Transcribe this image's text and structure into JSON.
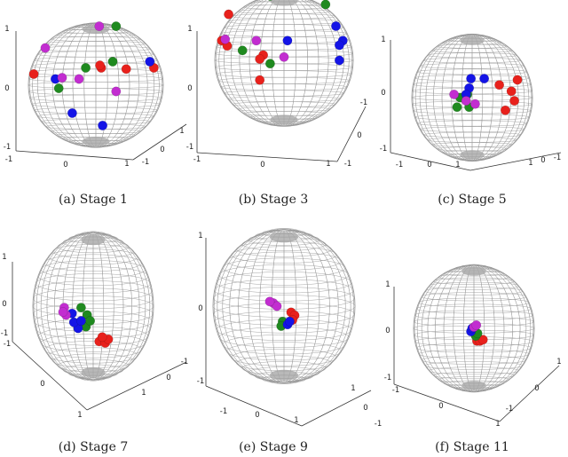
{
  "captions": [
    "(a) Stage 1",
    "(b) Stage 3",
    "(c) Stage 5",
    "(d) Stage 7",
    "(e) Stage 9",
    "(f) Stage 11"
  ],
  "ticks": {
    "pos": "1",
    "zero": "0",
    "neg": "-1",
    "neg_alt": "−1"
  },
  "colors": {
    "sphere": "#9a9a9a",
    "axis": "#333333",
    "red": "#e8211c",
    "green": "#1f8a1f",
    "blue": "#1414e6",
    "magenta": "#c22dd0"
  },
  "panels": [
    {
      "stage": 1,
      "points": [
        {
          "c": "red",
          "u": -0.92,
          "v": 0.18
        },
        {
          "c": "red",
          "u": 0.08,
          "v": 0.28
        },
        {
          "c": "red",
          "u": 0.06,
          "v": 0.32
        },
        {
          "c": "red",
          "u": 0.86,
          "v": 0.28
        },
        {
          "c": "red",
          "u": 0.45,
          "v": 0.26
        },
        {
          "c": "green",
          "u": 0.3,
          "v": 0.95
        },
        {
          "c": "green",
          "u": 0.25,
          "v": 0.38
        },
        {
          "c": "green",
          "u": -0.55,
          "v": -0.05
        },
        {
          "c": "green",
          "u": -0.15,
          "v": 0.28
        },
        {
          "c": "blue",
          "u": -0.6,
          "v": 0.1
        },
        {
          "c": "blue",
          "u": -0.35,
          "v": -0.45
        },
        {
          "c": "blue",
          "u": 0.1,
          "v": -0.65
        },
        {
          "c": "blue",
          "u": 0.8,
          "v": 0.38
        },
        {
          "c": "magenta",
          "u": -0.75,
          "v": 0.6
        },
        {
          "c": "magenta",
          "u": -0.5,
          "v": 0.12
        },
        {
          "c": "magenta",
          "u": -0.25,
          "v": 0.1
        },
        {
          "c": "magenta",
          "u": 0.3,
          "v": -0.1
        },
        {
          "c": "magenta",
          "u": 0.05,
          "v": 0.95
        }
      ]
    },
    {
      "stage": 3,
      "points": [
        {
          "c": "red",
          "u": -0.8,
          "v": 0.7
        },
        {
          "c": "red",
          "u": -0.9,
          "v": 0.3
        },
        {
          "c": "red",
          "u": -0.82,
          "v": 0.22
        },
        {
          "c": "red",
          "u": -0.3,
          "v": 0.08
        },
        {
          "c": "red",
          "u": -0.35,
          "v": 0.02
        },
        {
          "c": "red",
          "u": -0.35,
          "v": -0.3
        },
        {
          "c": "green",
          "u": -0.2,
          "v": 0.98
        },
        {
          "c": "green",
          "u": 0.6,
          "v": 0.85
        },
        {
          "c": "green",
          "u": -0.6,
          "v": 0.15
        },
        {
          "c": "green",
          "u": -0.2,
          "v": -0.05
        },
        {
          "c": "blue",
          "u": 0.75,
          "v": 0.52
        },
        {
          "c": "blue",
          "u": 0.85,
          "v": 0.3
        },
        {
          "c": "blue",
          "u": 0.8,
          "v": 0.23
        },
        {
          "c": "blue",
          "u": 0.05,
          "v": 0.3
        },
        {
          "c": "blue",
          "u": 0.8,
          "v": 0.0
        },
        {
          "c": "magenta",
          "u": -0.4,
          "v": 0.3
        },
        {
          "c": "magenta",
          "u": -0.85,
          "v": 0.32
        },
        {
          "c": "magenta",
          "u": 0.0,
          "v": 0.05
        }
      ]
    },
    {
      "stage": 5,
      "points": [
        {
          "c": "red",
          "u": 0.45,
          "v": 0.2
        },
        {
          "c": "red",
          "u": 0.65,
          "v": 0.1
        },
        {
          "c": "red",
          "u": 0.7,
          "v": -0.05
        },
        {
          "c": "red",
          "u": 0.55,
          "v": -0.2
        },
        {
          "c": "red",
          "u": 0.75,
          "v": 0.28
        },
        {
          "c": "green",
          "u": -0.2,
          "v": 0.0
        },
        {
          "c": "green",
          "u": -0.08,
          "v": 0.05
        },
        {
          "c": "green",
          "u": -0.25,
          "v": -0.15
        },
        {
          "c": "green",
          "u": -0.05,
          "v": -0.15
        },
        {
          "c": "blue",
          "u": -0.02,
          "v": 0.3
        },
        {
          "c": "blue",
          "u": 0.2,
          "v": 0.3
        },
        {
          "c": "blue",
          "u": -0.05,
          "v": 0.15
        },
        {
          "c": "blue",
          "u": -0.1,
          "v": 0.05
        },
        {
          "c": "magenta",
          "u": -0.3,
          "v": 0.05
        },
        {
          "c": "magenta",
          "u": 0.05,
          "v": -0.1
        },
        {
          "c": "magenta",
          "u": -0.1,
          "v": -0.05
        }
      ]
    },
    {
      "stage": 7,
      "points": [
        {
          "c": "red",
          "u": 0.1,
          "v": -0.48
        },
        {
          "c": "red",
          "u": 0.2,
          "v": -0.5
        },
        {
          "c": "red",
          "u": 0.25,
          "v": -0.45
        },
        {
          "c": "red",
          "u": 0.15,
          "v": -0.42
        },
        {
          "c": "green",
          "u": -0.2,
          "v": -0.02
        },
        {
          "c": "green",
          "u": -0.1,
          "v": -0.12
        },
        {
          "c": "green",
          "u": -0.12,
          "v": -0.28
        },
        {
          "c": "green",
          "u": -0.05,
          "v": -0.2
        },
        {
          "c": "blue",
          "u": -0.35,
          "v": -0.1
        },
        {
          "c": "blue",
          "u": -0.25,
          "v": -0.3
        },
        {
          "c": "blue",
          "u": -0.32,
          "v": -0.22
        },
        {
          "c": "blue",
          "u": -0.2,
          "v": -0.2
        },
        {
          "c": "magenta",
          "u": -0.48,
          "v": -0.02
        },
        {
          "c": "magenta",
          "u": -0.45,
          "v": -0.12
        },
        {
          "c": "magenta",
          "u": -0.5,
          "v": -0.08
        }
      ]
    },
    {
      "stage": 9,
      "points": [
        {
          "c": "red",
          "u": 0.1,
          "v": -0.08
        },
        {
          "c": "red",
          "u": 0.15,
          "v": -0.12
        },
        {
          "c": "red",
          "u": 0.12,
          "v": -0.18
        },
        {
          "c": "green",
          "u": -0.02,
          "v": -0.2
        },
        {
          "c": "green",
          "u": -0.04,
          "v": -0.26
        },
        {
          "c": "blue",
          "u": 0.05,
          "v": -0.24
        },
        {
          "c": "blue",
          "u": 0.08,
          "v": -0.2
        },
        {
          "c": "magenta",
          "u": -0.15,
          "v": 0.04
        },
        {
          "c": "magenta",
          "u": -0.1,
          "v": 0.0
        },
        {
          "c": "magenta",
          "u": -0.2,
          "v": 0.06
        }
      ]
    },
    {
      "stage": 11,
      "points": [
        {
          "c": "red",
          "u": 0.05,
          "v": -0.2
        },
        {
          "c": "red",
          "u": 0.1,
          "v": -0.2
        },
        {
          "c": "red",
          "u": 0.15,
          "v": -0.18
        },
        {
          "c": "green",
          "u": 0.03,
          "v": -0.12
        },
        {
          "c": "green",
          "u": 0.06,
          "v": -0.08
        },
        {
          "c": "blue",
          "u": -0.05,
          "v": -0.05
        },
        {
          "c": "blue",
          "u": -0.03,
          "v": 0.0
        },
        {
          "c": "magenta",
          "u": 0.0,
          "v": 0.02
        },
        {
          "c": "magenta",
          "u": 0.04,
          "v": 0.05
        }
      ]
    }
  ]
}
